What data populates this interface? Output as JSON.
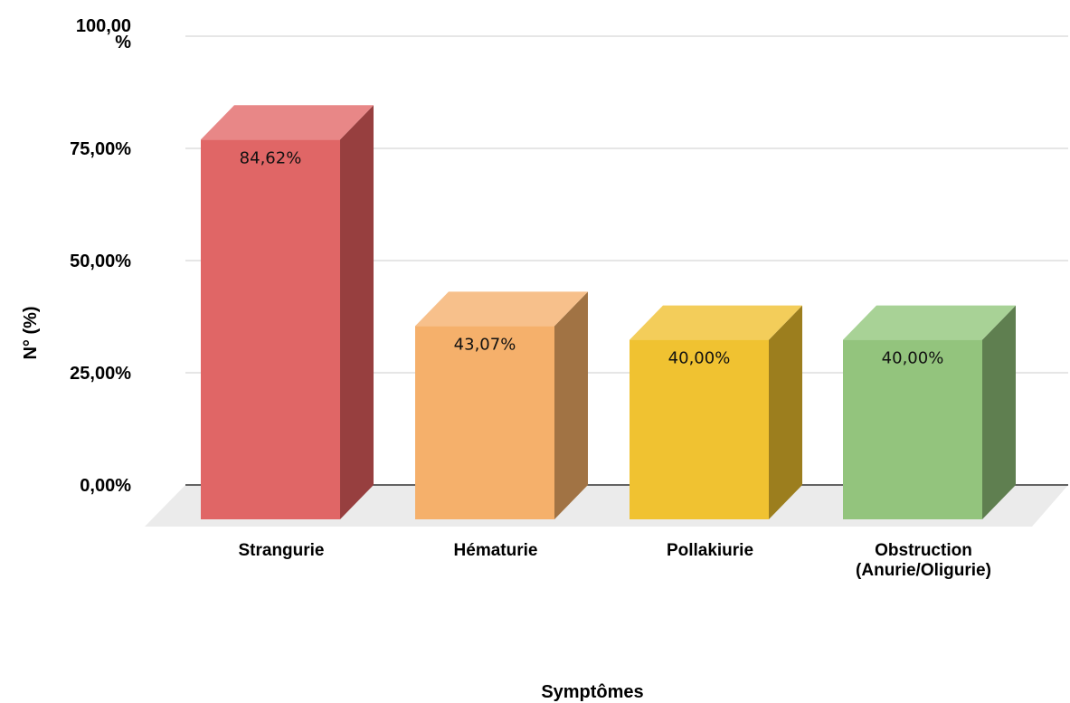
{
  "chart_data": {
    "type": "bar",
    "style": "3d",
    "xlabel": "Symptômes",
    "ylabel": "N° (%)",
    "ylim": [
      0,
      100
    ],
    "yticks": [
      {
        "value": 0,
        "label": "0,00%"
      },
      {
        "value": 25,
        "label": "25,00%"
      },
      {
        "value": 50,
        "label": "50,00%"
      },
      {
        "value": 75,
        "label": "75,00%"
      },
      {
        "value": 100,
        "label": "100,00 %"
      }
    ],
    "grid": true,
    "legend": "none",
    "categories": [
      [
        "Strangurie"
      ],
      [
        "Hématurie"
      ],
      [
        "Pollakiurie"
      ],
      [
        "Obstruction",
        "(Anurie/Oligurie)"
      ]
    ],
    "values": [
      84.62,
      43.07,
      40.0,
      40.0
    ],
    "data_labels": [
      "84,62%",
      "43,07%",
      "40,00%",
      "40,00%"
    ],
    "colors": [
      {
        "front": "#e06666",
        "top": "#e88787",
        "side": "#973f3f"
      },
      {
        "front": "#f5b06b",
        "top": "#f7c08b",
        "side": "#a17344"
      },
      {
        "front": "#f0c231",
        "top": "#f3cd5a",
        "side": "#9c7e1e"
      },
      {
        "front": "#93c47d",
        "top": "#a8d296",
        "side": "#5f7f50"
      }
    ]
  }
}
